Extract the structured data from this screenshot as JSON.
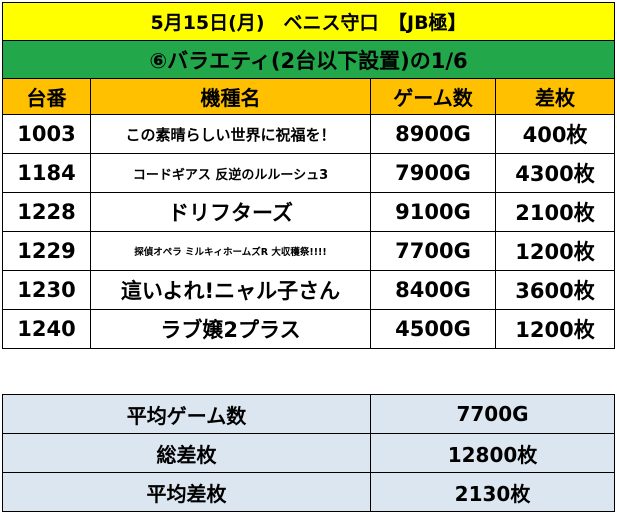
{
  "header": {
    "title": "5月15日(月)　ベニス守口　【JB極】",
    "subtitle": "⑥バラエティ(2台以下設置)の1/6"
  },
  "columns": [
    "台番",
    "機種名",
    "ゲーム数",
    "差枚"
  ],
  "rows": [
    {
      "no": "1003",
      "name": "この素晴らしい世界に祝福を！",
      "games": "8900G",
      "diff": "400枚"
    },
    {
      "no": "1184",
      "name": "コードギアス 反逆のルルーシュ3",
      "games": "7900G",
      "diff": "4300枚"
    },
    {
      "no": "1228",
      "name": "ドリフターズ",
      "games": "9100G",
      "diff": "2100枚"
    },
    {
      "no": "1229",
      "name": "探偵オペラ ミルキィホームズR 大収穫祭!!!!",
      "games": "7700G",
      "diff": "1200枚"
    },
    {
      "no": "1230",
      "name": "這いよれ!ニャル子さん",
      "games": "8400G",
      "diff": "3600枚"
    },
    {
      "no": "1240",
      "name": "ラブ嬢2プラス",
      "games": "4500G",
      "diff": "1200枚"
    }
  ],
  "summary": [
    {
      "label": "平均ゲーム数",
      "value": "7700G"
    },
    {
      "label": "総差枚",
      "value": "12800枚"
    },
    {
      "label": "平均差枚",
      "value": "2130枚"
    }
  ]
}
